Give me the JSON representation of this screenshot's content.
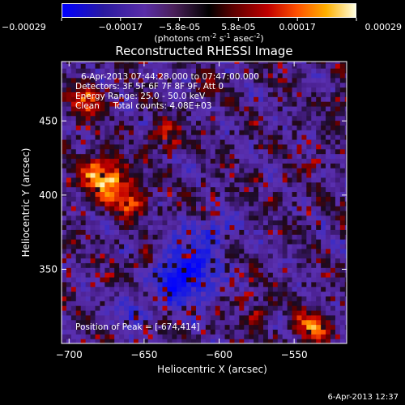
{
  "colorbar": {
    "ticks": [
      "-0.00029",
      "-0.00017",
      "-5.8e-05",
      "5.8e-05",
      "0.00017",
      "0.00029"
    ],
    "unit_label": "(photons cm",
    "unit_exp1": "-2",
    "unit_mid": " s",
    "unit_exp2": "-1",
    "unit_mid2": " asec",
    "unit_exp3": "-2",
    "unit_close": ")"
  },
  "chart_data": {
    "type": "heatmap",
    "title": "Reconstructed RHESSI Image",
    "xlabel": "Heliocentric X (arcsec)",
    "ylabel": "Heliocentric Y (arcsec)",
    "xlim": [
      -705,
      -515
    ],
    "ylim": [
      300,
      490
    ],
    "x_ticks": [
      -700,
      -650,
      -600,
      -550
    ],
    "y_ticks": [
      350,
      400,
      450
    ],
    "x_tick_labels": [
      "−700",
      "−650",
      "−600",
      "−550"
    ],
    "y_tick_labels": [
      "350",
      "400",
      "450"
    ],
    "colorscale_range": [
      -0.00029,
      0.00029
    ],
    "colors": {
      "min": "#0000ff",
      "mid_low": "#6a2fb0",
      "mid": "#000000",
      "mid_high": "#c00000",
      "max": "#ffffe0"
    },
    "hotspots": [
      {
        "x": -678,
        "y": 410,
        "radius": 14,
        "value": 0.00028
      },
      {
        "x": -690,
        "y": 462,
        "radius": 10,
        "value": 0.00022
      },
      {
        "x": -640,
        "y": 440,
        "radius": 8,
        "value": 0.00018
      },
      {
        "x": -660,
        "y": 395,
        "radius": 10,
        "value": 0.00018
      },
      {
        "x": -650,
        "y": 355,
        "radius": 7,
        "value": 0.00014
      },
      {
        "x": -540,
        "y": 310,
        "radius": 10,
        "value": 0.00024
      },
      {
        "x": -575,
        "y": 318,
        "radius": 7,
        "value": 0.00016
      },
      {
        "x": -520,
        "y": 460,
        "radius": 7,
        "value": 0.00014
      },
      {
        "x": -610,
        "y": 470,
        "radius": 6,
        "value": 0.00012
      }
    ],
    "coldspots": [
      {
        "x": -625,
        "y": 345,
        "radius": 18,
        "value": -0.00024
      },
      {
        "x": -605,
        "y": 375,
        "radius": 10,
        "value": -0.00014
      },
      {
        "x": -660,
        "y": 318,
        "radius": 9,
        "value": -0.00012
      }
    ]
  },
  "annotations": {
    "time_range": "6-Apr-2013 07:44:28.000 to 07:47:00.000",
    "detectors": "Detectors: 3F 5F 6F 7F 8F 9F, Att 0",
    "energy": "Energy Range: 25.0 - 50.0 keV",
    "clean": "Clean     Total counts: 4.08E+03",
    "peak": "Position of Peak = [-674,414]"
  },
  "footer_timestamp": "6-Apr-2013 12:37"
}
